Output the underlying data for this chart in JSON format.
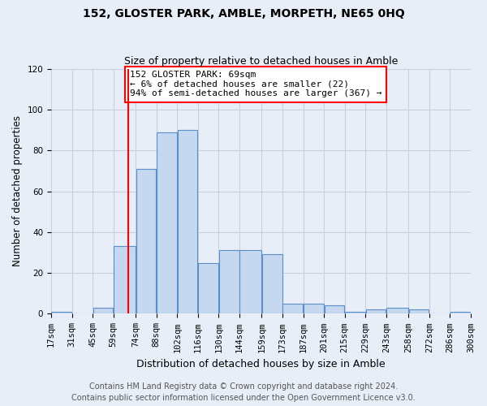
{
  "title": "152, GLOSTER PARK, AMBLE, MORPETH, NE65 0HQ",
  "subtitle": "Size of property relative to detached houses in Amble",
  "xlabel": "Distribution of detached houses by size in Amble",
  "ylabel": "Number of detached properties",
  "bin_labels": [
    "17sqm",
    "31sqm",
    "45sqm",
    "59sqm",
    "74sqm",
    "88sqm",
    "102sqm",
    "116sqm",
    "130sqm",
    "144sqm",
    "159sqm",
    "173sqm",
    "187sqm",
    "201sqm",
    "215sqm",
    "229sqm",
    "243sqm",
    "258sqm",
    "272sqm",
    "286sqm",
    "300sqm"
  ],
  "bin_edges": [
    17,
    31,
    45,
    59,
    74,
    88,
    102,
    116,
    130,
    144,
    159,
    173,
    187,
    201,
    215,
    229,
    243,
    258,
    272,
    286,
    300
  ],
  "bar_heights": [
    1,
    0,
    3,
    33,
    71,
    89,
    90,
    25,
    31,
    31,
    29,
    5,
    5,
    4,
    1,
    2,
    3,
    2,
    0,
    1
  ],
  "bar_color": "#c5d8f0",
  "bar_edge_color": "#5b8ec9",
  "property_value": 69,
  "vline_color": "red",
  "annotation_text": "152 GLOSTER PARK: 69sqm\n← 6% of detached houses are smaller (22)\n94% of semi-detached houses are larger (367) →",
  "annotation_box_color": "white",
  "annotation_box_edge_color": "red",
  "ylim": [
    0,
    120
  ],
  "yticks": [
    0,
    20,
    40,
    60,
    80,
    100,
    120
  ],
  "footer_line1": "Contains HM Land Registry data © Crown copyright and database right 2024.",
  "footer_line2": "Contains public sector information licensed under the Open Government Licence v3.0.",
  "background_color": "#e8eef8",
  "plot_background_color": "#e8eef8",
  "grid_color": "#c8d0e0",
  "title_fontsize": 10,
  "subtitle_fontsize": 9,
  "ylabel_fontsize": 8.5,
  "xlabel_fontsize": 9,
  "tick_fontsize": 7.5,
  "annotation_fontsize": 8,
  "footer_fontsize": 7
}
